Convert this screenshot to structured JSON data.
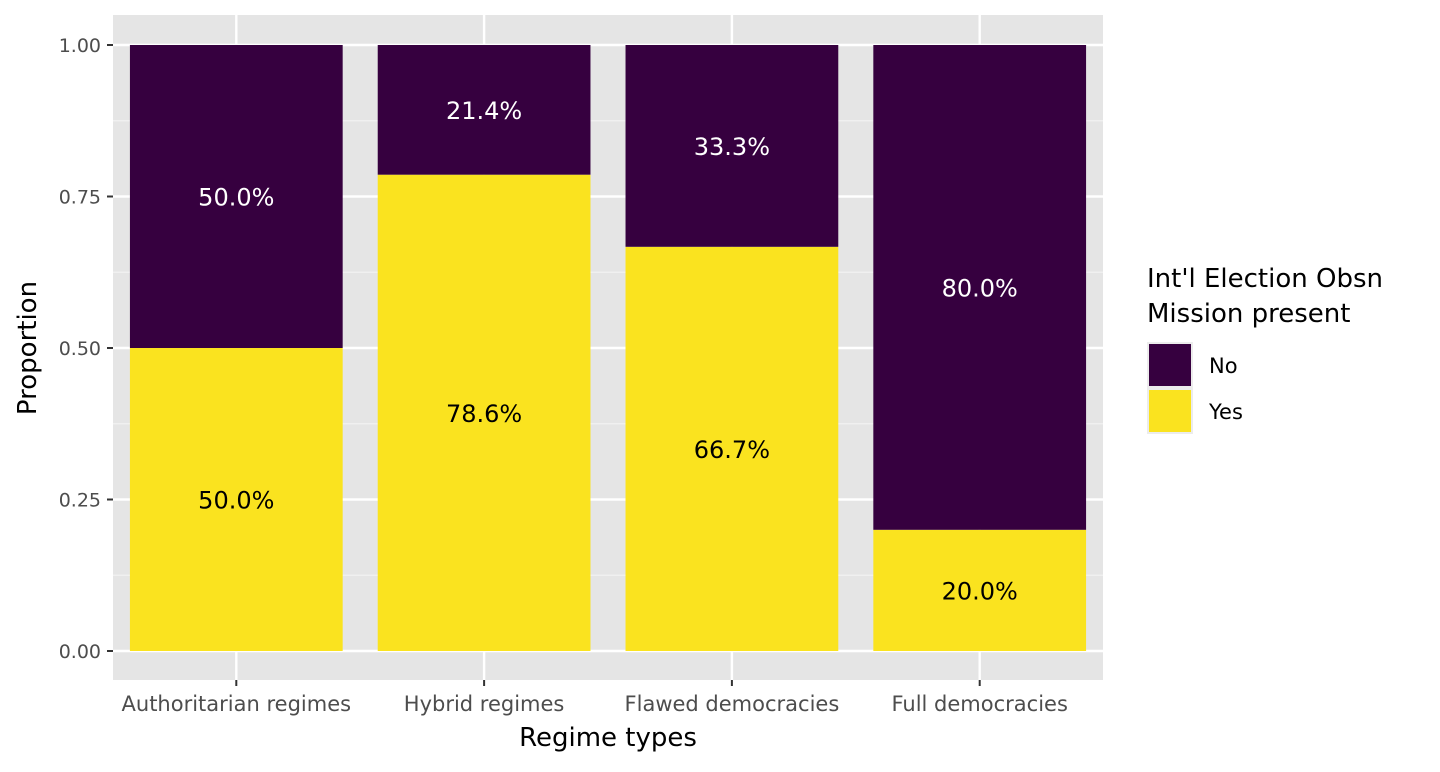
{
  "chart_data": {
    "type": "bar",
    "stacked": true,
    "position": "fill",
    "xlabel": "Regime types",
    "ylabel": "Proportion",
    "ylim": [
      0,
      1
    ],
    "yticks": [
      "0.00",
      "0.25",
      "0.50",
      "0.75",
      "1.00"
    ],
    "categories": [
      "Authoritarian regimes",
      "Hybrid regimes",
      "Flawed democracies",
      "Full democracies"
    ],
    "series": [
      {
        "name": "No",
        "color": "#36003f",
        "values": [
          0.5,
          0.214,
          0.333,
          0.8
        ],
        "labels": [
          "50.0%",
          "21.4%",
          "33.3%",
          "80.0%"
        ]
      },
      {
        "name": "Yes",
        "color": "#fae31f",
        "values": [
          0.5,
          0.786,
          0.667,
          0.2
        ],
        "labels": [
          "50.0%",
          "78.6%",
          "66.7%",
          "20.0%"
        ]
      }
    ],
    "legend": {
      "title_lines": [
        "Int'l Election Obsn",
        "Mission present"
      ],
      "placement": "right"
    },
    "grid": true,
    "panel_background": "#e5e5e5"
  }
}
